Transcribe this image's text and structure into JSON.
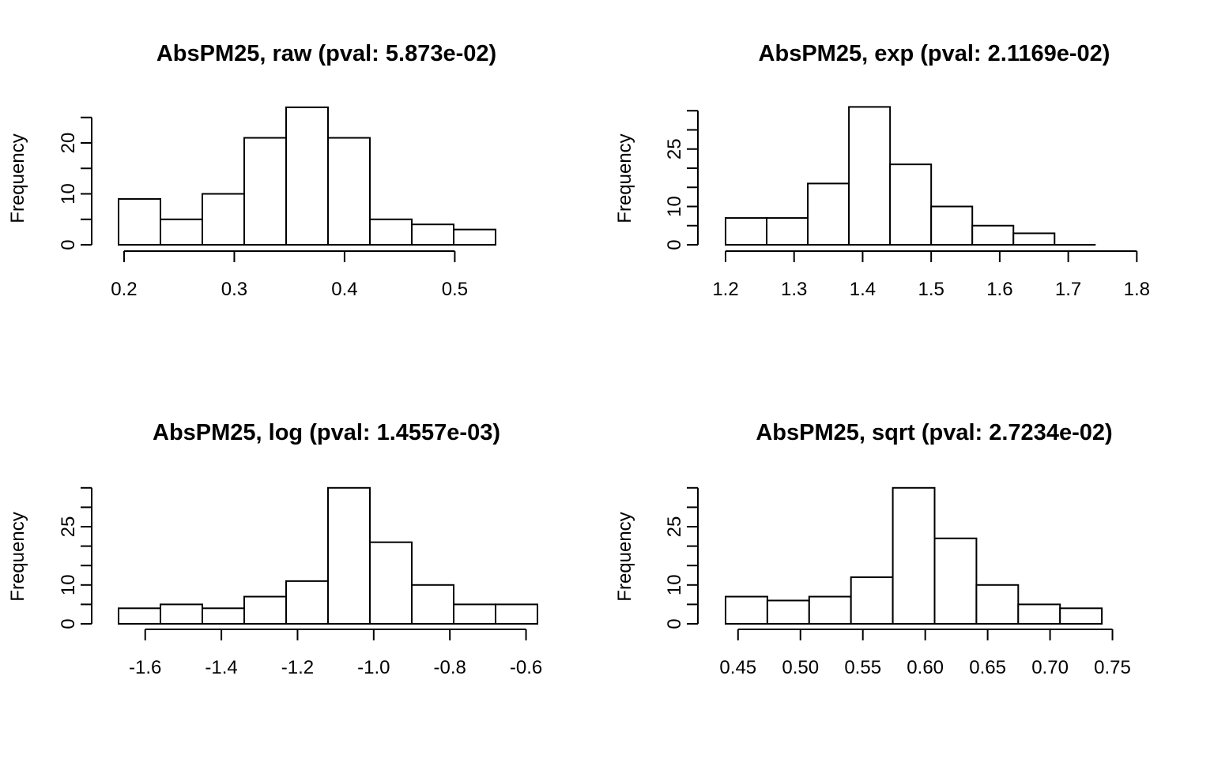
{
  "chart_data": [
    {
      "type": "bar",
      "title": "AbsPM25, raw (pval: 5.873e-02)",
      "xlabel": "",
      "ylabel": "Frequency",
      "bar_left_edge": 0.195,
      "bar_width": 0.038,
      "values": [
        9,
        5,
        10,
        21,
        27,
        21,
        5,
        4,
        3
      ],
      "xlim": [
        0.195,
        0.575
      ],
      "x_ticks": [
        0.2,
        0.3,
        0.4,
        0.5
      ],
      "x_tick_labels": [
        "0.2",
        "0.3",
        "0.4",
        "0.5"
      ],
      "ylim": [
        0,
        25
      ],
      "y_ticks": [
        0,
        5,
        10,
        15,
        20,
        25
      ],
      "y_tick_labels": [
        "0",
        "",
        "10",
        "",
        "20",
        ""
      ],
      "grid": false
    },
    {
      "type": "bar",
      "title": "AbsPM25, exp (pval: 2.1169e-02)",
      "xlabel": "",
      "ylabel": "Frequency",
      "bar_left_edge": 1.2,
      "bar_width": 0.06,
      "values": [
        7,
        7,
        16,
        36,
        21,
        10,
        5,
        3,
        0
      ],
      "xlim": [
        1.2,
        1.81
      ],
      "x_ticks": [
        1.2,
        1.3,
        1.4,
        1.5,
        1.6,
        1.7,
        1.8
      ],
      "x_tick_labels": [
        "1.2",
        "1.3",
        "1.4",
        "1.5",
        "1.6",
        "1.7",
        "1.8"
      ],
      "ylim": [
        0,
        35
      ],
      "y_ticks": [
        0,
        5,
        10,
        15,
        20,
        25,
        30,
        35
      ],
      "y_tick_labels": [
        "0",
        "",
        "10",
        "",
        "",
        "25",
        "",
        ""
      ],
      "grid": false
    },
    {
      "type": "bar",
      "title": "AbsPM25, log (pval: 1.4557e-03)",
      "xlabel": "",
      "ylabel": "Frequency",
      "bar_left_edge": -1.67,
      "bar_width": 0.11,
      "values": [
        4,
        5,
        4,
        7,
        11,
        35,
        21,
        10,
        5,
        5
      ],
      "xlim": [
        -1.67,
        -0.57
      ],
      "x_ticks": [
        -1.6,
        -1.4,
        -1.2,
        -1.0,
        -0.8,
        -0.6
      ],
      "x_tick_labels": [
        "-1.6",
        "-1.4",
        "-1.2",
        "-1.0",
        "-0.8",
        "-0.6"
      ],
      "ylim": [
        0,
        35
      ],
      "y_ticks": [
        0,
        5,
        10,
        15,
        20,
        25,
        30,
        35
      ],
      "y_tick_labels": [
        "0",
        "",
        "10",
        "",
        "",
        "25",
        "",
        ""
      ],
      "grid": false
    },
    {
      "type": "bar",
      "title": "AbsPM25, sqrt (pval: 2.7234e-02)",
      "xlabel": "",
      "ylabel": "Frequency",
      "bar_left_edge": 0.44,
      "bar_width": 0.0335,
      "values": [
        7,
        6,
        7,
        12,
        35,
        22,
        10,
        5,
        4
      ],
      "xlim": [
        0.44,
        0.775
      ],
      "x_ticks": [
        0.45,
        0.5,
        0.55,
        0.6,
        0.65,
        0.7,
        0.75
      ],
      "x_tick_labels": [
        "0.45",
        "0.50",
        "0.55",
        "0.60",
        "0.65",
        "0.70",
        "0.75"
      ],
      "ylim": [
        0,
        35
      ],
      "y_ticks": [
        0,
        5,
        10,
        15,
        20,
        25,
        30,
        35
      ],
      "y_tick_labels": [
        "0",
        "",
        "10",
        "",
        "",
        "25",
        "",
        ""
      ],
      "grid": false
    }
  ]
}
